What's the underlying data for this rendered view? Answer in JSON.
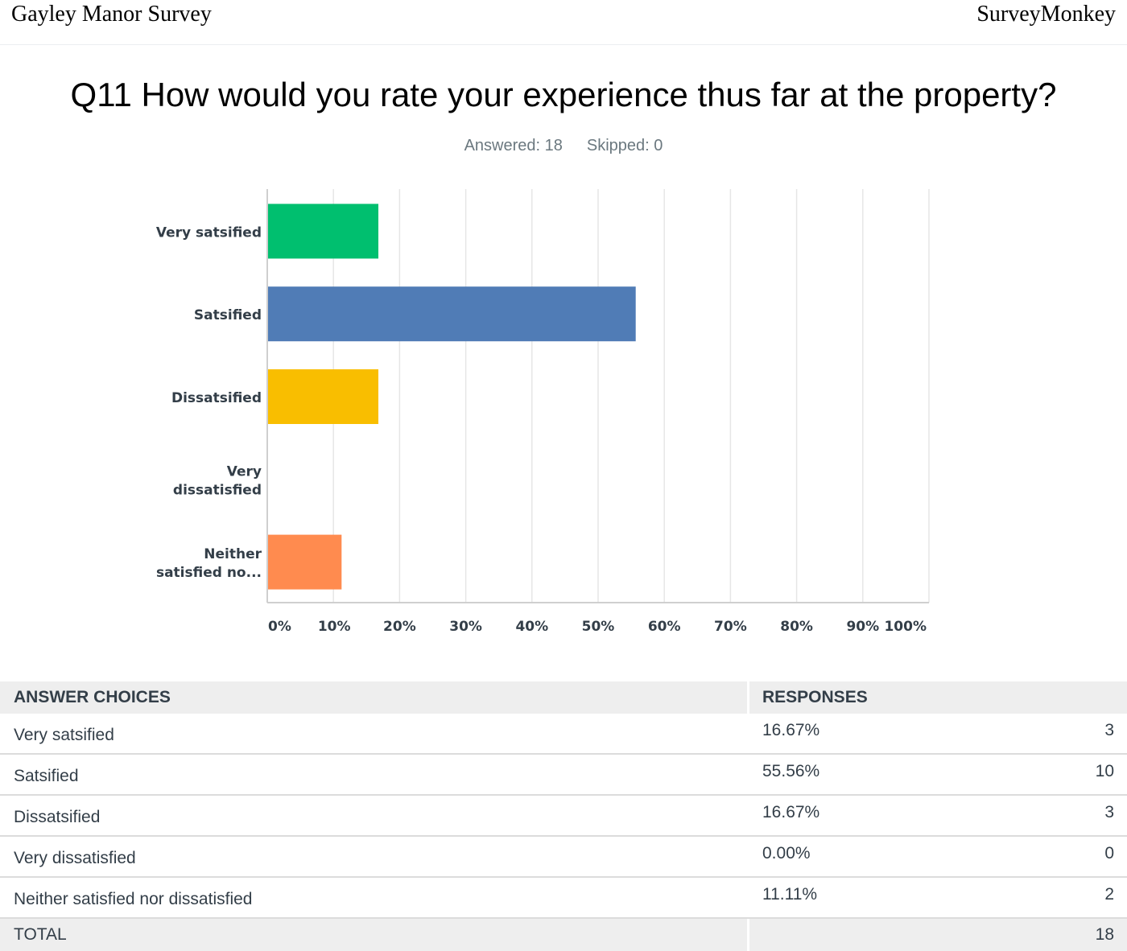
{
  "header": {
    "left": "Gayley Manor Survey",
    "right": "SurveyMonkey"
  },
  "question": {
    "title": "Q11 How would you rate your experience thus far at the property?",
    "answered": "Answered: 18",
    "skipped": "Skipped: 0"
  },
  "chart_data": {
    "type": "bar",
    "orientation": "horizontal",
    "categories": [
      [
        "Very satsified"
      ],
      [
        "Satsified"
      ],
      [
        "Dissatsified"
      ],
      [
        "Very",
        "dissatisfied"
      ],
      [
        "Neither",
        "satisfied no..."
      ]
    ],
    "values": [
      16.67,
      55.56,
      16.67,
      0,
      11.11
    ],
    "colors": [
      "#00bf6f",
      "#507cb6",
      "#f9be00",
      "#6bc8cd",
      "#ff8b4f"
    ],
    "xlim": [
      0,
      100
    ],
    "xticks": [
      "0%",
      "10%",
      "20%",
      "30%",
      "40%",
      "50%",
      "60%",
      "70%",
      "80%",
      "90%",
      "100%"
    ],
    "grid": true
  },
  "table": {
    "headers": [
      "ANSWER CHOICES",
      "RESPONSES"
    ],
    "rows": [
      {
        "choice": "Very satsified",
        "percent": "16.67%",
        "count": "3"
      },
      {
        "choice": "Satsified",
        "percent": "55.56%",
        "count": "10"
      },
      {
        "choice": "Dissatsified",
        "percent": "16.67%",
        "count": "3"
      },
      {
        "choice": "Very dissatisfied",
        "percent": "0.00%",
        "count": "0"
      },
      {
        "choice": "Neither satisfied nor dissatisfied",
        "percent": "11.11%",
        "count": "2"
      }
    ],
    "total_label": "TOTAL",
    "total_count": "18"
  }
}
